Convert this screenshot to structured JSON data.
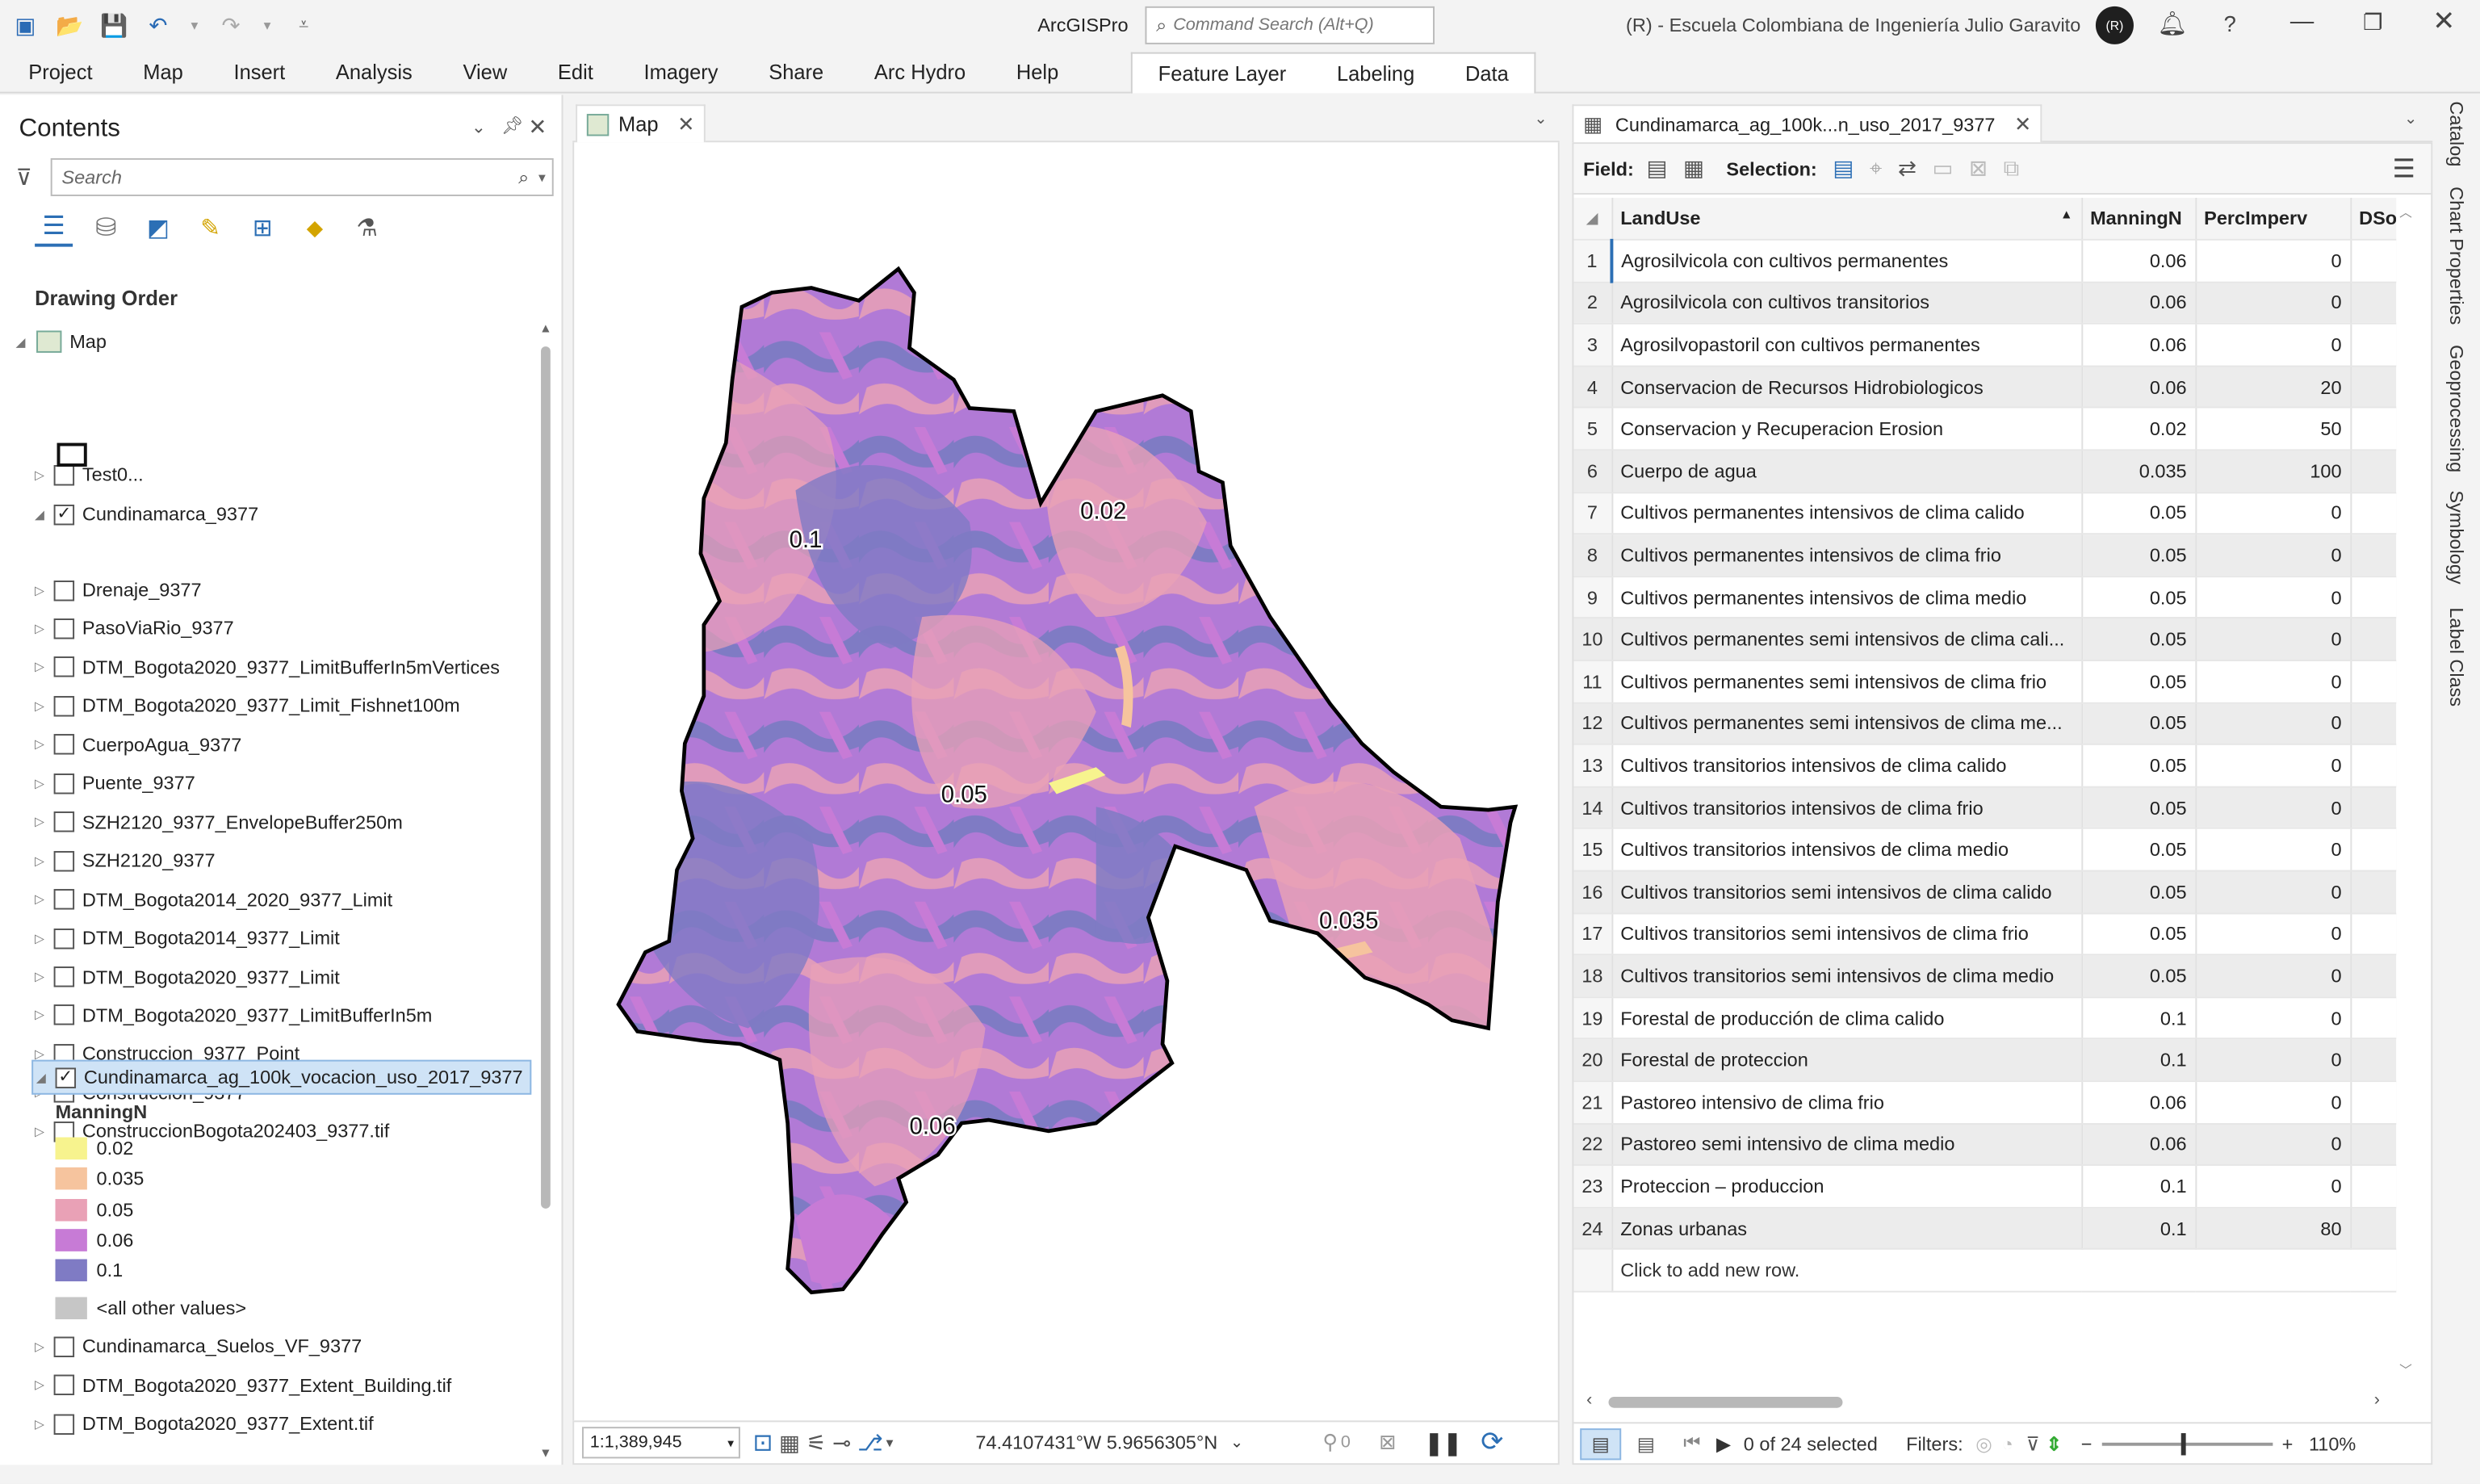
{
  "app": {
    "name": "ArcGISPro",
    "search_placeholder": "Command Search (Alt+Q)",
    "user_initials": "(R)",
    "org": "(R) - Escuela Colombiana de Ingeniería Julio Garavito"
  },
  "ribbon": {
    "tabs": [
      "Project",
      "Map",
      "Insert",
      "Analysis",
      "View",
      "Edit",
      "Imagery",
      "Share",
      "Arc Hydro",
      "Help"
    ],
    "context_tabs": [
      "Feature Layer",
      "Labeling",
      "Data"
    ]
  },
  "contents": {
    "title": "Contents",
    "search_placeholder": "Search",
    "drawing_order": "Drawing Order",
    "map_label": "Map",
    "layers_top": [
      {
        "name": "Test0...",
        "checked": false
      },
      {
        "name": "Cundinamarca_9377",
        "checked": true,
        "expanded": true
      }
    ],
    "layers_mid": [
      {
        "name": "Drenaje_9377",
        "checked": false
      },
      {
        "name": "PasoViaRio_9377",
        "checked": false
      },
      {
        "name": "DTM_Bogota2020_9377_LimitBufferIn5mVertices",
        "checked": false
      },
      {
        "name": "DTM_Bogota2020_9377_Limit_Fishnet100m",
        "checked": false
      },
      {
        "name": "CuerpoAgua_9377",
        "checked": false
      },
      {
        "name": "Puente_9377",
        "checked": false
      },
      {
        "name": "SZH2120_9377_EnvelopeBuffer250m",
        "checked": false
      },
      {
        "name": "SZH2120_9377",
        "checked": false
      },
      {
        "name": "DTM_Bogota2014_2020_9377_Limit",
        "checked": false
      },
      {
        "name": "DTM_Bogota2014_9377_Limit",
        "checked": false
      },
      {
        "name": "DTM_Bogota2020_9377_Limit",
        "checked": false
      },
      {
        "name": "DTM_Bogota2020_9377_LimitBufferIn5m",
        "checked": false
      },
      {
        "name": "Construccion_9377_Point",
        "checked": false
      },
      {
        "name": "Construccion_9377",
        "checked": false
      },
      {
        "name": "ConstruccionBogota202403_9377.tif",
        "checked": false
      }
    ],
    "selected_layer": "Cundinamarca_ag_100k_vocacion_uso_2017_9377",
    "legend_field": "ManningN",
    "legend": [
      {
        "label": "0.02",
        "color": "#f7f38e"
      },
      {
        "label": "0.035",
        "color": "#f6c49e"
      },
      {
        "label": "0.05",
        "color": "#e9a1b6"
      },
      {
        "label": "0.06",
        "color": "#c77bd6"
      },
      {
        "label": "0.1",
        "color": "#7f7bc4"
      },
      {
        "label": "<all other values>",
        "color": "#c6c6c6"
      }
    ],
    "layers_bottom": [
      {
        "name": "Cundinamarca_Suelos_VF_9377",
        "checked": false
      },
      {
        "name": "DTM_Bogota2020_9377_Extent_Building.tif",
        "checked": false
      },
      {
        "name": "DTM_Bogota2020_9377_Extent.tif",
        "checked": false
      }
    ]
  },
  "map": {
    "tab": "Map",
    "labels": [
      {
        "text": "0.1"
      },
      {
        "text": "0.02"
      },
      {
        "text": "0.05"
      },
      {
        "text": "0.035"
      },
      {
        "text": "0.06"
      }
    ],
    "scale": "1:1,389,945",
    "coords": "74.4107431°W 5.9656305°N",
    "selected_count": "0"
  },
  "table": {
    "tab": "Cundinamarca_ag_100k...n_uso_2017_9377",
    "field_label": "Field:",
    "selection_label": "Selection:",
    "columns": [
      "LandUse",
      "ManningN",
      "PercImperv",
      "DSo"
    ],
    "rows": [
      [
        "1",
        "Agrosilvicola con cultivos permanentes",
        "0.06",
        "0"
      ],
      [
        "2",
        "Agrosilvicola con cultivos transitorios",
        "0.06",
        "0"
      ],
      [
        "3",
        "Agrosilvopastoril con cultivos permanentes",
        "0.06",
        "0"
      ],
      [
        "4",
        "Conservacion de Recursos Hidrobiologicos",
        "0.06",
        "20"
      ],
      [
        "5",
        "Conservacion y Recuperacion Erosion",
        "0.02",
        "50"
      ],
      [
        "6",
        "Cuerpo de agua",
        "0.035",
        "100"
      ],
      [
        "7",
        "Cultivos permanentes intensivos de clima calido",
        "0.05",
        "0"
      ],
      [
        "8",
        "Cultivos permanentes intensivos de clima frio",
        "0.05",
        "0"
      ],
      [
        "9",
        "Cultivos permanentes intensivos de clima medio",
        "0.05",
        "0"
      ],
      [
        "10",
        "Cultivos permanentes semi intensivos de clima cali...",
        "0.05",
        "0"
      ],
      [
        "11",
        "Cultivos permanentes semi intensivos de clima frio",
        "0.05",
        "0"
      ],
      [
        "12",
        "Cultivos permanentes semi intensivos de clima me...",
        "0.05",
        "0"
      ],
      [
        "13",
        "Cultivos transitorios intensivos de clima calido",
        "0.05",
        "0"
      ],
      [
        "14",
        "Cultivos transitorios intensivos de clima frio",
        "0.05",
        "0"
      ],
      [
        "15",
        "Cultivos transitorios intensivos de clima medio",
        "0.05",
        "0"
      ],
      [
        "16",
        "Cultivos transitorios semi intensivos de clima calido",
        "0.05",
        "0"
      ],
      [
        "17",
        "Cultivos transitorios semi intensivos de clima frio",
        "0.05",
        "0"
      ],
      [
        "18",
        "Cultivos transitorios semi intensivos de clima medio",
        "0.05",
        "0"
      ],
      [
        "19",
        "Forestal de producción de clima calido",
        "0.1",
        "0"
      ],
      [
        "20",
        "Forestal de proteccion",
        "0.1",
        "0"
      ],
      [
        "21",
        "Pastoreo intensivo de clima frio",
        "0.06",
        "0"
      ],
      [
        "22",
        "Pastoreo semi intensivo de clima medio",
        "0.06",
        "0"
      ],
      [
        "23",
        "Proteccion – produccion",
        "0.1",
        "0"
      ],
      [
        "24",
        "Zonas urbanas",
        "0.1",
        "80"
      ]
    ],
    "add_row": "Click to add new row.",
    "status": "0 of 24 selected",
    "filters": "Filters:",
    "zoom": "110%"
  },
  "side_tabs": [
    "Catalog",
    "Chart Properties",
    "Geoprocessing",
    "Symbology",
    "Label Class"
  ]
}
